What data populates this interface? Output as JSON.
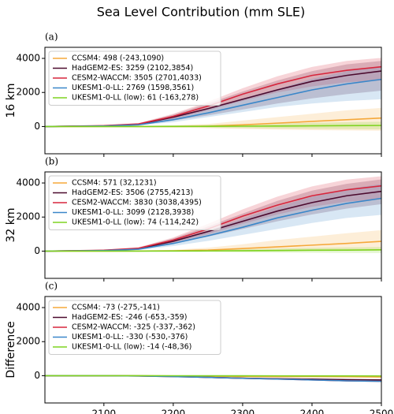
{
  "title": "Sea Level Contribution (mm SLE)",
  "chart_data": [
    {
      "type": "line",
      "title": "(a)",
      "y_label": "16 km",
      "x": [
        2015,
        2100,
        2150,
        2200,
        2250,
        2300,
        2350,
        2400,
        2450,
        2500
      ],
      "xlim": [
        2015,
        2500
      ],
      "xticks": [
        2100,
        2200,
        2300,
        2400,
        2500
      ],
      "ylim": [
        -1600,
        4650
      ],
      "yticks": [
        0,
        2000,
        4000
      ],
      "legend": "upper left",
      "series": [
        {
          "name": "CCSM4: 498 (-243,1090)",
          "color": "#f5a83a",
          "values": [
            0,
            0,
            0,
            5,
            20,
            100,
            200,
            300,
            400,
            498
          ],
          "lower": [
            0,
            -10,
            -30,
            -60,
            -100,
            -140,
            -180,
            -210,
            -230,
            -243
          ],
          "upper": [
            0,
            10,
            30,
            70,
            150,
            350,
            550,
            750,
            950,
            1090
          ]
        },
        {
          "name": "HadGEM2-ES: 3259 (2102,3854)",
          "color": "#4b0a2e",
          "values": [
            0,
            40,
            130,
            550,
            1050,
            1600,
            2150,
            2650,
            3000,
            3259
          ],
          "lower": [
            0,
            20,
            80,
            350,
            650,
            1000,
            1350,
            1650,
            1900,
            2102
          ],
          "upper": [
            0,
            60,
            180,
            700,
            1350,
            2050,
            2700,
            3250,
            3650,
            3854
          ]
        },
        {
          "name": "CESM2-WACCM: 3505 (2701,4033)",
          "color": "#d7263d",
          "values": [
            0,
            50,
            150,
            600,
            1200,
            1900,
            2500,
            3000,
            3300,
            3505
          ],
          "lower": [
            0,
            30,
            100,
            450,
            950,
            1500,
            2000,
            2350,
            2600,
            2701
          ],
          "upper": [
            0,
            70,
            200,
            750,
            1450,
            2250,
            2950,
            3500,
            3850,
            4033
          ]
        },
        {
          "name": "UKESM1-0-LL: 2769 (1598,3561)",
          "color": "#3a87c9",
          "values": [
            0,
            30,
            100,
            400,
            800,
            1250,
            1700,
            2150,
            2500,
            2769
          ],
          "lower": [
            0,
            20,
            70,
            250,
            550,
            850,
            1150,
            1350,
            1500,
            1598
          ],
          "upper": [
            0,
            45,
            140,
            550,
            1050,
            1650,
            2200,
            2800,
            3250,
            3561
          ]
        },
        {
          "name": "UKESM1-0-LL (low): 61 (-163,278)",
          "color": "#7fd321",
          "values": [
            0,
            0,
            0,
            5,
            10,
            20,
            30,
            40,
            50,
            61
          ],
          "lower": [
            0,
            -10,
            -30,
            -50,
            -70,
            -90,
            -110,
            -130,
            -150,
            -163
          ],
          "upper": [
            0,
            10,
            30,
            60,
            100,
            140,
            180,
            220,
            250,
            278
          ]
        }
      ]
    },
    {
      "type": "line",
      "title": "(b)",
      "y_label": "32 km",
      "x": [
        2015,
        2100,
        2150,
        2200,
        2250,
        2300,
        2350,
        2400,
        2450,
        2500
      ],
      "xlim": [
        2015,
        2500
      ],
      "xticks": [
        2100,
        2200,
        2300,
        2400,
        2500
      ],
      "ylim": [
        -1600,
        4650
      ],
      "yticks": [
        0,
        2000,
        4000
      ],
      "legend": "upper left",
      "series": [
        {
          "name": "CCSM4: 571 (32,1231)",
          "color": "#f5a83a",
          "values": [
            0,
            0,
            5,
            20,
            60,
            150,
            250,
            350,
            450,
            571
          ],
          "lower": [
            0,
            -5,
            -10,
            -10,
            -5,
            0,
            10,
            20,
            25,
            32
          ],
          "upper": [
            0,
            10,
            30,
            80,
            200,
            400,
            650,
            850,
            1050,
            1231
          ]
        },
        {
          "name": "HadGEM2-ES: 3506 (2755,4213)",
          "color": "#4b0a2e",
          "values": [
            0,
            40,
            140,
            580,
            1150,
            1750,
            2350,
            2850,
            3250,
            3506
          ],
          "lower": [
            0,
            25,
            90,
            420,
            850,
            1300,
            1750,
            2150,
            2500,
            2755
          ],
          "upper": [
            0,
            60,
            200,
            750,
            1450,
            2200,
            2950,
            3550,
            3950,
            4213
          ]
        },
        {
          "name": "CESM2-WACCM: 3830 (3038,4395)",
          "color": "#d7263d",
          "values": [
            0,
            50,
            170,
            650,
            1300,
            2050,
            2700,
            3250,
            3600,
            3830
          ],
          "lower": [
            0,
            30,
            110,
            500,
            1000,
            1600,
            2150,
            2600,
            2900,
            3038
          ],
          "upper": [
            0,
            70,
            230,
            800,
            1600,
            2450,
            3200,
            3800,
            4200,
            4395
          ]
        },
        {
          "name": "UKESM1-0-LL: 3099 (2128,3938)",
          "color": "#3a87c9",
          "values": [
            0,
            30,
            110,
            450,
            900,
            1400,
            1950,
            2400,
            2800,
            3099
          ],
          "lower": [
            0,
            20,
            70,
            300,
            600,
            950,
            1300,
            1650,
            1950,
            2128
          ],
          "upper": [
            0,
            45,
            160,
            600,
            1200,
            1900,
            2600,
            3200,
            3650,
            3938
          ]
        },
        {
          "name": "UKESM1-0-LL (low): 74 (-114,242)",
          "color": "#7fd321",
          "values": [
            0,
            0,
            2,
            8,
            15,
            25,
            35,
            50,
            60,
            74
          ],
          "lower": [
            0,
            -10,
            -25,
            -40,
            -55,
            -70,
            -85,
            -95,
            -105,
            -114
          ],
          "upper": [
            0,
            10,
            25,
            50,
            80,
            110,
            150,
            190,
            220,
            242
          ]
        }
      ]
    },
    {
      "type": "line",
      "title": "(c)",
      "y_label": "Difference",
      "x": [
        2015,
        2100,
        2150,
        2200,
        2250,
        2300,
        2350,
        2400,
        2450,
        2500
      ],
      "xlim": [
        2015,
        2500
      ],
      "xticks": [
        2100,
        2200,
        2300,
        2400,
        2500
      ],
      "ylim": [
        -1600,
        4650
      ],
      "yticks": [
        0,
        2000,
        4000
      ],
      "legend": "upper left",
      "series": [
        {
          "name": "CCSM4: -73 (-275,-141)",
          "color": "#f5a83a",
          "values": [
            0,
            0,
            -5,
            -15,
            -40,
            -50,
            -50,
            -50,
            -60,
            -73
          ]
        },
        {
          "name": "HadGEM2-ES: -246 (-653,-359)",
          "color": "#4b0a2e",
          "values": [
            0,
            0,
            -10,
            -30,
            -100,
            -150,
            -180,
            -200,
            -230,
            -246
          ]
        },
        {
          "name": "CESM2-WACCM: -325 (-337,-362)",
          "color": "#d7263d",
          "values": [
            0,
            0,
            -20,
            -50,
            -100,
            -150,
            -200,
            -250,
            -300,
            -325
          ]
        },
        {
          "name": "UKESM1-0-LL: -330 (-530,-376)",
          "color": "#3a87c9",
          "values": [
            0,
            0,
            -20,
            -50,
            -100,
            -150,
            -200,
            -250,
            -300,
            -330
          ]
        },
        {
          "name": "UKESM1-0-LL (low): -14 (-48,36)",
          "color": "#7fd321",
          "values": [
            0,
            0,
            -2,
            -3,
            -5,
            -7,
            -9,
            -11,
            -12,
            -14
          ]
        }
      ]
    }
  ]
}
